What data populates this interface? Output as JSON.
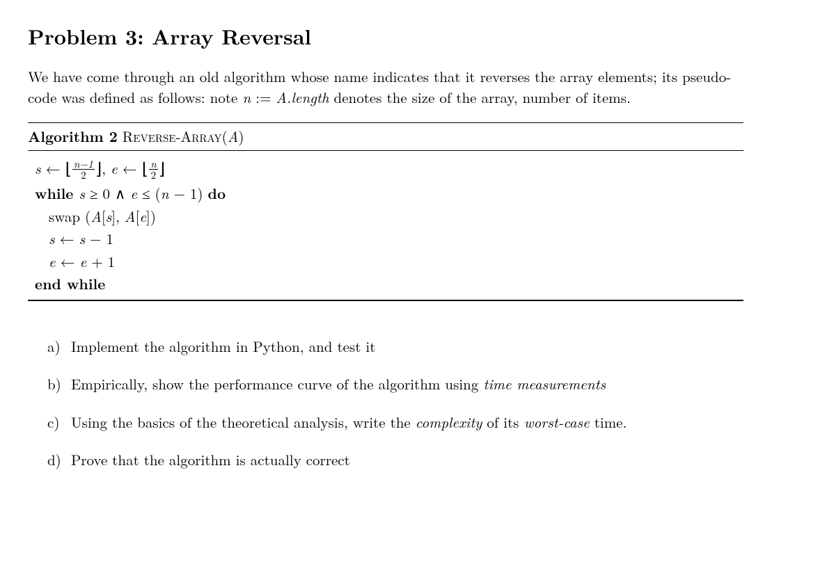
{
  "title": "Problem 3: Array Reversal",
  "intro_parts": {
    "p1": "We have come through an old algorithm whose name indicates that it reverses the array elements; its pseudo-code was defined as follows: note ",
    "var_n": "n",
    "assign": " := ",
    "var_alen": "A.length",
    "p2": " denotes the size of the array, number of items."
  },
  "algo": {
    "header_label": "Algorithm 2",
    "header_name_pre": " R",
    "header_name_sc": "everse",
    "header_dash": "-A",
    "header_name_sc2": "rray",
    "header_arg_open": "(",
    "header_arg": "A",
    "header_arg_close": ")",
    "line1": {
      "s": "s",
      "arrow1": " ← ",
      "floorL1": "⌊",
      "num1": "n−1",
      "den1": "2",
      "floorR1": "⌋",
      "comma": ", ",
      "e": "e",
      "arrow2": " ← ",
      "floorL2": "⌊",
      "num2": "n",
      "den2": "2",
      "floorR2": "⌋"
    },
    "line2": {
      "while": "while ",
      "s": "s",
      "geq": " ≥ 0 ∧ ",
      "e": "e",
      "leq": " ≤ (",
      "n": "n",
      "rest": " − 1) ",
      "do": "do"
    },
    "line3": {
      "swap": "swap ",
      "open": "(",
      "A1": "A",
      "brs": "[",
      "s": "s",
      "bre": "], ",
      "A2": "A",
      "br2s": "[",
      "e": "e",
      "br2e": "])"
    },
    "line4": {
      "s": "s",
      "arrow": " ← ",
      "s2": "s",
      "rest": " − 1"
    },
    "line5": {
      "e": "e",
      "arrow": " ← ",
      "e2": "e",
      "rest": " + 1"
    },
    "line6": "end while"
  },
  "questions": {
    "a": {
      "label": "a)",
      "text": "Implement the algorithm in Python, and test it"
    },
    "b": {
      "label": "b)",
      "pre": "Empirically, show the performance curve of the algorithm using ",
      "ital": "time measurements"
    },
    "c": {
      "label": "c)",
      "pre": "Using the basics of the theoretical analysis, write the ",
      "ital1": "complexity",
      "mid": " of its ",
      "ital2": "worst-case",
      "post": " time."
    },
    "d": {
      "label": "d)",
      "text": "Prove that the algorithm is actually correct"
    }
  }
}
